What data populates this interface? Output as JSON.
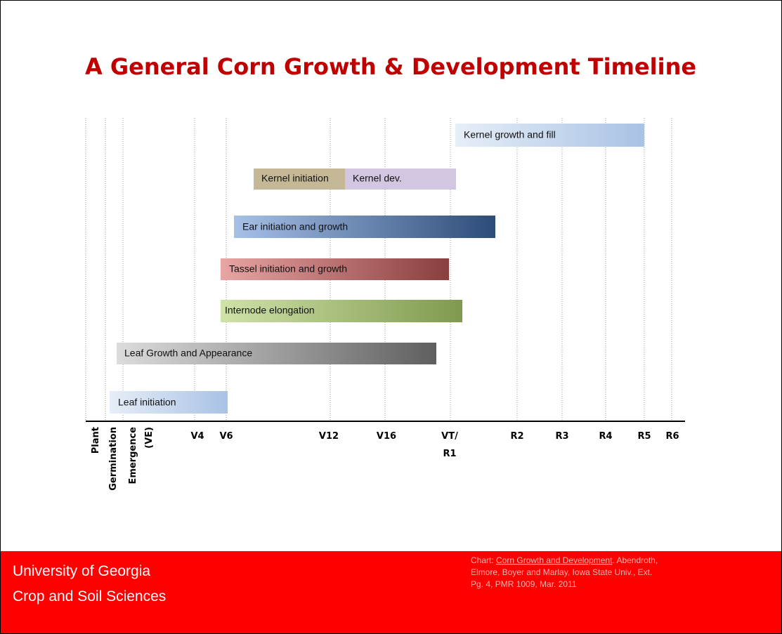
{
  "title": "A General Corn Growth & Development Timeline",
  "bars": [
    {
      "label": "Kernel growth and fill"
    },
    {
      "label": "Kernel initiation"
    },
    {
      "label": "Kernel dev."
    },
    {
      "label": "Ear initiation and growth"
    },
    {
      "label": "Tassel initiation and growth"
    },
    {
      "label": "Internode elongation"
    },
    {
      "label": "Leaf Growth and Appearance"
    },
    {
      "label": "Leaf initiation"
    }
  ],
  "axis_labels": [
    "Plant",
    "Germination",
    "Emergence",
    "(VE)",
    "V4",
    "V6",
    "V12",
    "V16",
    "VT/",
    "R1",
    "R2",
    "R3",
    "R4",
    "R5",
    "R6"
  ],
  "footer": {
    "lines": [
      "University of Georgia",
      "Crop and Soil Sciences"
    ],
    "citation": {
      "prefix": "Chart: ",
      "link": "Corn Growth and Development",
      "rest": [
        ". Abendroth,",
        "Elmore, Boyer and Marlay, Iowa State Univ., Ext.",
        "Pg. 4, PMR 1009, Mar. 2011"
      ]
    }
  }
}
